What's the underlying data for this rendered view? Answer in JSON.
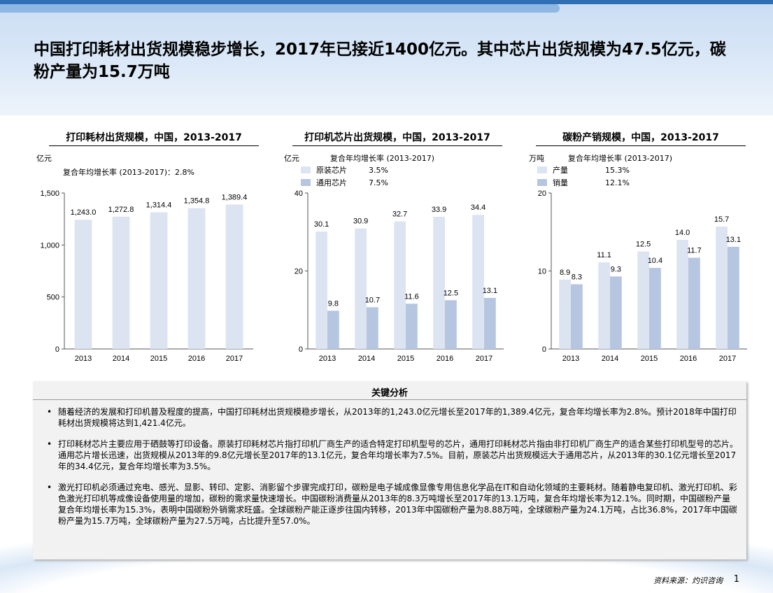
{
  "header": {
    "title": "中国打印耗材出货规模稳步增长，2017年已接近1400亿元。其中芯片出货规模为47.5亿元，碳粉产量为15.7万吨"
  },
  "colors": {
    "light_bar": "#dde4f1",
    "dark_bar": "#b7c6e0",
    "axis": "#555555"
  },
  "chart_data": [
    {
      "type": "bar",
      "title": "打印耗材出货规模，中国，2013-2017",
      "unit": "亿元",
      "cagr_note": "复合年均增长率 (2013-2017)：2.8%",
      "categories": [
        "2013",
        "2014",
        "2015",
        "2016",
        "2017"
      ],
      "series": [
        {
          "values": [
            1243.0,
            1272.8,
            1314.4,
            1354.8,
            1389.4
          ],
          "labels": [
            "1,243.0",
            "1,272.8",
            "1,314.4",
            "1,354.8",
            "1,389.4"
          ]
        }
      ],
      "ylim": [
        0,
        1500
      ],
      "yticks": [
        0,
        500,
        1000,
        1500
      ],
      "ytick_labels": [
        "0",
        "500",
        "1,000",
        "1,500"
      ]
    },
    {
      "type": "bar",
      "title": "打印机芯片出货规模，中国，2013-2017",
      "unit": "亿元",
      "legend_header": "复合年均增长率 (2013-2017)",
      "categories": [
        "2013",
        "2014",
        "2015",
        "2016",
        "2017"
      ],
      "series": [
        {
          "name": "原装芯片",
          "cagr": "3.5%",
          "values": [
            30.1,
            30.9,
            32.7,
            33.9,
            34.4
          ],
          "labels": [
            "30.1",
            "30.9",
            "32.7",
            "33.9",
            "34.4"
          ]
        },
        {
          "name": "通用芯片",
          "cagr": "7.5%",
          "values": [
            9.8,
            10.7,
            11.6,
            12.5,
            13.1
          ],
          "labels": [
            "9.8",
            "10.7",
            "11.6",
            "12.5",
            "13.1"
          ]
        }
      ],
      "ylim": [
        0,
        40
      ],
      "yticks": [
        0,
        20,
        40
      ],
      "ytick_labels": [
        "0",
        "20",
        "40"
      ]
    },
    {
      "type": "bar",
      "title": "碳粉产销规模，中国，2013-2017",
      "unit": "万吨",
      "legend_header": "复合年均增长率 (2013-2017)",
      "categories": [
        "2013",
        "2014",
        "2015",
        "2016",
        "2017"
      ],
      "series": [
        {
          "name": "产量",
          "cagr": "15.3%",
          "values": [
            8.9,
            11.1,
            12.5,
            14.0,
            15.7
          ],
          "labels": [
            "8.9",
            "11.1",
            "12.5",
            "14.0",
            "15.7"
          ]
        },
        {
          "name": "销量",
          "cagr": "12.1%",
          "values": [
            8.3,
            9.3,
            10.4,
            11.7,
            13.1
          ],
          "labels": [
            "8.3",
            "9.3",
            "10.4",
            "11.7",
            "13.1"
          ]
        }
      ],
      "ylim": [
        0,
        20
      ],
      "yticks": [
        0,
        10,
        20
      ],
      "ytick_labels": [
        "0",
        "10",
        "20"
      ]
    }
  ],
  "analysis": {
    "title": "关键分析",
    "bullets": [
      "随着经济的发展和打印机普及程度的提高，中国打印耗材出货规模稳步增长，从2013年的1,243.0亿元增长至2017年的1,389.4亿元，复合年均增长率为2.8%。预计2018年中国打印耗材出货规模将达到1,421.4亿元。",
      "打印耗材芯片主要应用于硒鼓等打印设备。原装打印耗材芯片指打印机厂商生产的适合特定打印机型号的芯片，通用打印耗材芯片指由非打印机厂商生产的适合某些打印机型号的芯片。通用芯片增长迅速，出货规模从2013年的9.8亿元增长至2017年的13.1亿元，复合年均增长率为7.5%。目前，原装芯片出货规模远大于通用芯片，从2013年的30.1亿元增长至2017年的34.4亿元，复合年均增长率为3.5%。",
      "激光打印机必须通过充电、感光、显影、转印、定影、消影留个步骤完成打印，碳粉是电子城成像显像专用信息化学品在IT和自动化领域的主要耗材。随着静电复印机、激光打印机、彩色激光打印机等成像设备使用量的增加，碳粉的需求量快速增长。中国碳粉消费量从2013年的8.3万吨增长至2017年的13.1万吨，复合年均增长率为12.1%。同时期，中国碳粉产量复合年均增长率为15.3%，表明中国碳粉外销需求旺盛。全球碳粉产能正逐步往国内转移，2013年中国碳粉产量为8.88万吨，全球碳粉产量为24.1万吨，占比36.8%，2017年中国碳粉产量为15.7万吨，全球碳粉产量为27.5万吨，占比提升至57.0%。"
    ]
  },
  "footer": {
    "source": "资料来源：灼识咨询",
    "page_number": "1"
  }
}
